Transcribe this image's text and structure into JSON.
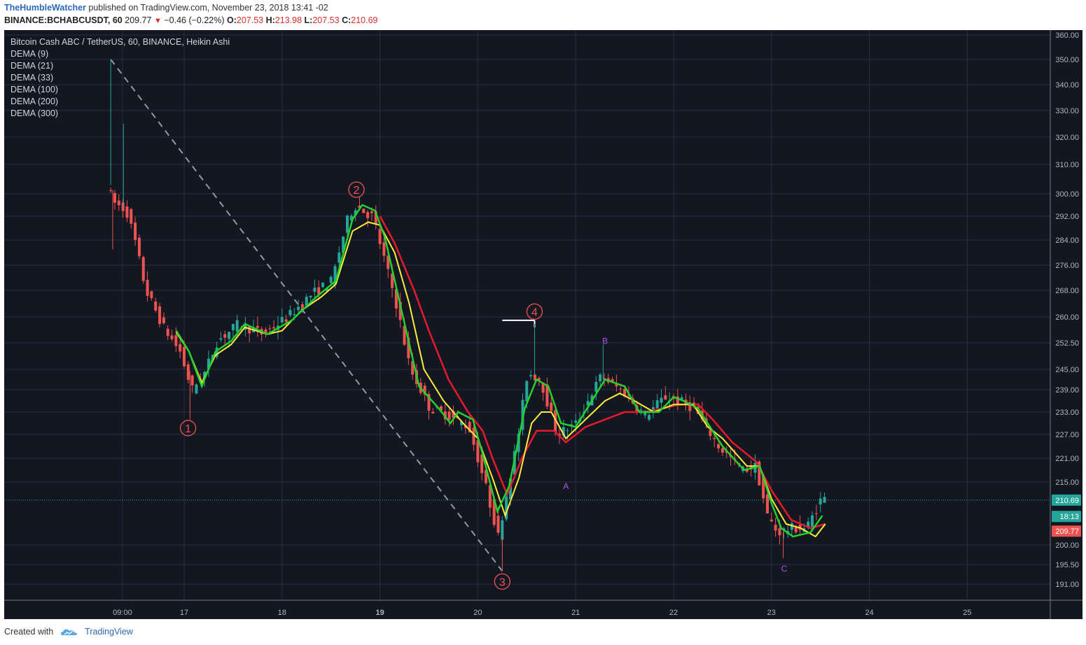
{
  "header": {
    "author": "TheHumbleWatcher",
    "published_text": "published on TradingView.com, November 23, 2018 13:41 -02",
    "symbol": "BINANCE:BCHABCUSDT, 60",
    "last": "209.77",
    "change": "−0.46 (−0.22%)",
    "o_label": "O:",
    "o_val": "207.53",
    "h_label": "H:",
    "h_val": "213.98",
    "l_label": "L:",
    "l_val": "207.53",
    "c_label": "C:",
    "c_val": "210.69"
  },
  "footer": {
    "created_with": "Created with",
    "brand": "TradingView",
    "logo_icon": "tradingview-logo-icon"
  },
  "chart_data": {
    "type": "candlestick",
    "title": "Bitcoin Cash ABC / TetherUS, 60, BINANCE, Heikin Ashi",
    "indicators": [
      "DEMA (9)",
      "DEMA (21)",
      "DEMA (33)",
      "DEMA (100)",
      "DEMA (200)",
      "DEMA (300)"
    ],
    "x_ticks": [
      {
        "label": "09:00",
        "t": -0.63
      },
      {
        "label": "17",
        "t": 0
      },
      {
        "label": "18",
        "t": 1
      },
      {
        "label": "19",
        "t": 2,
        "bold": true
      },
      {
        "label": "20",
        "t": 3
      },
      {
        "label": "21",
        "t": 4
      },
      {
        "label": "22",
        "t": 5
      },
      {
        "label": "23",
        "t": 6
      },
      {
        "label": "24",
        "t": 7
      },
      {
        "label": "25",
        "t": 8
      }
    ],
    "y_ticks": [
      191.0,
      195.5,
      200.0,
      209.77,
      210.69,
      215.0,
      221.0,
      227.0,
      233.0,
      239.0,
      245.0,
      252.5,
      260.0,
      268.0,
      276.0,
      284.0,
      292.0,
      300.0,
      310.0,
      320.0,
      330.0,
      340.0,
      350.0,
      360.0
    ],
    "y_tick_labels": [
      "191.00",
      "195.50",
      "200.00",
      "209.77",
      "210.69",
      "215.00",
      "221.00",
      "227.00",
      "233.00",
      "239.00",
      "245.00",
      "252.50",
      "260.00",
      "268.00",
      "276.00",
      "284.00",
      "292.00",
      "300.00",
      "310.00",
      "320.00",
      "330.00",
      "340.00",
      "350.00",
      "360.00"
    ],
    "price_line": 210.69,
    "badges": [
      {
        "label": "210.69",
        "value": 210.69,
        "color": "#26a69a"
      },
      {
        "label": "18:13",
        "value": 206.8,
        "color": "#26a69a"
      },
      {
        "label": "209.77",
        "value": 203.3,
        "color": "#ef5350"
      }
    ],
    "keypoints": [
      {
        "t": -0.75,
        "p": 303
      },
      {
        "t": -0.68,
        "p": 297
      },
      {
        "t": -0.55,
        "p": 294
      },
      {
        "t": -0.47,
        "p": 285
      },
      {
        "t": -0.35,
        "p": 268
      },
      {
        "t": -0.17,
        "p": 257
      },
      {
        "t": 0.0,
        "p": 250
      },
      {
        "t": 0.12,
        "p": 239
      },
      {
        "t": 0.25,
        "p": 244
      },
      {
        "t": 0.38,
        "p": 253
      },
      {
        "t": 0.6,
        "p": 258
      },
      {
        "t": 0.85,
        "p": 255
      },
      {
        "t": 1.1,
        "p": 260
      },
      {
        "t": 1.35,
        "p": 267
      },
      {
        "t": 1.55,
        "p": 271
      },
      {
        "t": 1.72,
        "p": 292
      },
      {
        "t": 1.8,
        "p": 296
      },
      {
        "t": 1.9,
        "p": 293
      },
      {
        "t": 1.97,
        "p": 292
      },
      {
        "t": 2.05,
        "p": 282
      },
      {
        "t": 2.2,
        "p": 265
      },
      {
        "t": 2.35,
        "p": 245
      },
      {
        "t": 2.55,
        "p": 234
      },
      {
        "t": 2.75,
        "p": 232
      },
      {
        "t": 2.95,
        "p": 229
      },
      {
        "t": 3.1,
        "p": 216
      },
      {
        "t": 3.25,
        "p": 202
      },
      {
        "t": 3.45,
        "p": 226
      },
      {
        "t": 3.55,
        "p": 244
      },
      {
        "t": 3.68,
        "p": 242
      },
      {
        "t": 3.85,
        "p": 227
      },
      {
        "t": 4.05,
        "p": 230
      },
      {
        "t": 4.3,
        "p": 243
      },
      {
        "t": 4.55,
        "p": 238
      },
      {
        "t": 4.75,
        "p": 232
      },
      {
        "t": 4.95,
        "p": 237
      },
      {
        "t": 5.1,
        "p": 236
      },
      {
        "t": 5.25,
        "p": 234
      },
      {
        "t": 5.5,
        "p": 224
      },
      {
        "t": 5.75,
        "p": 218
      },
      {
        "t": 5.88,
        "p": 219
      },
      {
        "t": 6.0,
        "p": 207
      },
      {
        "t": 6.1,
        "p": 203
      },
      {
        "t": 6.25,
        "p": 204
      },
      {
        "t": 6.4,
        "p": 204
      },
      {
        "t": 6.55,
        "p": 211
      }
    ],
    "spikes": [
      {
        "t": -0.75,
        "p": 350
      },
      {
        "t": -0.62,
        "p": 325
      },
      {
        "t": -0.73,
        "p": 281
      },
      {
        "t": 0.06,
        "p": 231
      },
      {
        "t": 3.25,
        "p": 194
      },
      {
        "t": 3.58,
        "p": 258
      },
      {
        "t": 4.28,
        "p": 252
      },
      {
        "t": 6.12,
        "p": 197
      }
    ],
    "dema_green": [
      {
        "t": -0.08,
        "p": 256
      },
      {
        "t": 0.05,
        "p": 250
      },
      {
        "t": 0.18,
        "p": 240
      },
      {
        "t": 0.32,
        "p": 250
      },
      {
        "t": 0.48,
        "p": 253
      },
      {
        "t": 0.62,
        "p": 258
      },
      {
        "t": 0.85,
        "p": 255
      },
      {
        "t": 1.1,
        "p": 259
      },
      {
        "t": 1.35,
        "p": 266
      },
      {
        "t": 1.55,
        "p": 271
      },
      {
        "t": 1.72,
        "p": 291
      },
      {
        "t": 1.82,
        "p": 296
      },
      {
        "t": 1.95,
        "p": 294
      },
      {
        "t": 2.05,
        "p": 285
      },
      {
        "t": 2.22,
        "p": 262
      },
      {
        "t": 2.4,
        "p": 240
      },
      {
        "t": 2.6,
        "p": 234
      },
      {
        "t": 2.72,
        "p": 230
      },
      {
        "t": 2.8,
        "p": 233
      },
      {
        "t": 2.95,
        "p": 231
      },
      {
        "t": 3.05,
        "p": 222
      },
      {
        "t": 3.2,
        "p": 208
      },
      {
        "t": 3.32,
        "p": 214
      },
      {
        "t": 3.48,
        "p": 234
      },
      {
        "t": 3.6,
        "p": 242
      },
      {
        "t": 3.72,
        "p": 240
      },
      {
        "t": 3.85,
        "p": 230
      },
      {
        "t": 4.0,
        "p": 229
      },
      {
        "t": 4.3,
        "p": 242
      },
      {
        "t": 4.5,
        "p": 240
      },
      {
        "t": 4.65,
        "p": 233
      },
      {
        "t": 4.85,
        "p": 233
      },
      {
        "t": 5.0,
        "p": 237
      },
      {
        "t": 5.1,
        "p": 236
      },
      {
        "t": 5.25,
        "p": 234
      },
      {
        "t": 5.5,
        "p": 224
      },
      {
        "t": 5.72,
        "p": 218
      },
      {
        "t": 5.88,
        "p": 219
      },
      {
        "t": 6.0,
        "p": 210
      },
      {
        "t": 6.1,
        "p": 204
      },
      {
        "t": 6.22,
        "p": 202
      },
      {
        "t": 6.4,
        "p": 203
      },
      {
        "t": 6.52,
        "p": 207
      }
    ],
    "dema_yellow": [
      {
        "t": -0.08,
        "p": 255.5
      },
      {
        "t": 0.05,
        "p": 250
      },
      {
        "t": 0.18,
        "p": 241
      },
      {
        "t": 0.32,
        "p": 249
      },
      {
        "t": 0.48,
        "p": 252
      },
      {
        "t": 0.62,
        "p": 257
      },
      {
        "t": 0.85,
        "p": 255
      },
      {
        "t": 1.0,
        "p": 256
      },
      {
        "t": 1.2,
        "p": 262
      },
      {
        "t": 1.4,
        "p": 266
      },
      {
        "t": 1.55,
        "p": 270
      },
      {
        "t": 1.72,
        "p": 287
      },
      {
        "t": 1.88,
        "p": 290
      },
      {
        "t": 2.0,
        "p": 289
      },
      {
        "t": 2.15,
        "p": 280
      },
      {
        "t": 2.3,
        "p": 264
      },
      {
        "t": 2.45,
        "p": 245
      },
      {
        "t": 2.65,
        "p": 236
      },
      {
        "t": 2.85,
        "p": 230
      },
      {
        "t": 3.0,
        "p": 226
      },
      {
        "t": 3.15,
        "p": 216
      },
      {
        "t": 3.28,
        "p": 207
      },
      {
        "t": 3.42,
        "p": 216
      },
      {
        "t": 3.55,
        "p": 230
      },
      {
        "t": 3.65,
        "p": 233
      },
      {
        "t": 3.75,
        "p": 233
      },
      {
        "t": 3.9,
        "p": 226
      },
      {
        "t": 4.1,
        "p": 231
      },
      {
        "t": 4.3,
        "p": 236
      },
      {
        "t": 4.45,
        "p": 238
      },
      {
        "t": 4.6,
        "p": 236
      },
      {
        "t": 4.8,
        "p": 233
      },
      {
        "t": 5.0,
        "p": 235
      },
      {
        "t": 5.2,
        "p": 235
      },
      {
        "t": 5.35,
        "p": 229
      },
      {
        "t": 5.5,
        "p": 226
      },
      {
        "t": 5.75,
        "p": 219
      },
      {
        "t": 5.88,
        "p": 219
      },
      {
        "t": 6.0,
        "p": 211
      },
      {
        "t": 6.15,
        "p": 205
      },
      {
        "t": 6.3,
        "p": 204
      },
      {
        "t": 6.45,
        "p": 202
      },
      {
        "t": 6.55,
        "p": 205
      }
    ],
    "dema_red": [
      {
        "t": 2.0,
        "p": 292
      },
      {
        "t": 2.15,
        "p": 283
      },
      {
        "t": 2.35,
        "p": 268
      },
      {
        "t": 2.5,
        "p": 256
      },
      {
        "t": 2.7,
        "p": 242
      },
      {
        "t": 2.9,
        "p": 233
      },
      {
        "t": 3.05,
        "p": 228
      },
      {
        "t": 3.15,
        "p": 221
      },
      {
        "t": 3.3,
        "p": 212
      },
      {
        "t": 3.45,
        "p": 221
      },
      {
        "t": 3.6,
        "p": 228
      },
      {
        "t": 3.78,
        "p": 228
      },
      {
        "t": 3.9,
        "p": 225
      },
      {
        "t": 4.1,
        "p": 229
      },
      {
        "t": 4.3,
        "p": 231
      },
      {
        "t": 4.5,
        "p": 233
      },
      {
        "t": 4.7,
        "p": 233
      },
      {
        "t": 4.9,
        "p": 234
      },
      {
        "t": 5.05,
        "p": 235
      },
      {
        "t": 5.25,
        "p": 235
      },
      {
        "t": 5.4,
        "p": 231
      },
      {
        "t": 5.6,
        "p": 225
      },
      {
        "t": 5.85,
        "p": 220
      },
      {
        "t": 6.0,
        "p": 213
      },
      {
        "t": 6.2,
        "p": 206
      },
      {
        "t": 6.4,
        "p": 204
      },
      {
        "t": 6.55,
        "p": 205
      }
    ],
    "trendline": [
      {
        "t": -0.75,
        "p": 350
      },
      {
        "t": 3.25,
        "p": 194
      }
    ],
    "resistance": {
      "t1": 3.25,
      "t2": 3.58,
      "p": 259
    },
    "wave_labels": [
      {
        "text": "1",
        "t": 0.04,
        "p": 228.7,
        "circled": true
      },
      {
        "text": "2",
        "t": 1.76,
        "p": 301.4,
        "circled": true
      },
      {
        "text": "3",
        "t": 3.25,
        "p": 191.6,
        "circled": true
      },
      {
        "text": "4",
        "t": 3.58,
        "p": 261.6,
        "circled": true
      },
      {
        "text": "A",
        "t": 3.9,
        "p": 214,
        "circled": false
      },
      {
        "text": "B",
        "t": 4.3,
        "p": 253,
        "circled": false
      },
      {
        "text": "C",
        "t": 6.13,
        "p": 194.5,
        "circled": false
      }
    ]
  }
}
